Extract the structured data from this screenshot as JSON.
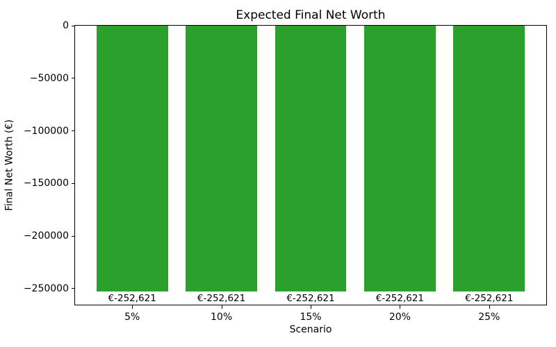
{
  "chart_data": {
    "type": "bar",
    "title": "Expected Final Net Worth",
    "xlabel": "Scenario",
    "ylabel": "Final Net Worth (€)",
    "categories": [
      "5%",
      "10%",
      "15%",
      "20%",
      "25%"
    ],
    "values": [
      -252621,
      -252621,
      -252621,
      -252621,
      -252621
    ],
    "bar_labels": [
      "€-252,621",
      "€-252,621",
      "€-252,621",
      "€-252,621",
      "€-252,621"
    ],
    "bar_color": "#2ca02c",
    "bar_width": 0.8,
    "xlim": [
      -0.64,
      4.64
    ],
    "ylim": [
      -265252,
      0
    ],
    "yticks": [
      0,
      -50000,
      -100000,
      -150000,
      -200000,
      -250000
    ],
    "ytick_labels": [
      "0",
      "−50000",
      "−100000",
      "−150000",
      "−200000",
      "−250000"
    ],
    "grid": false,
    "legend": null,
    "background_color": "#ffffff"
  }
}
